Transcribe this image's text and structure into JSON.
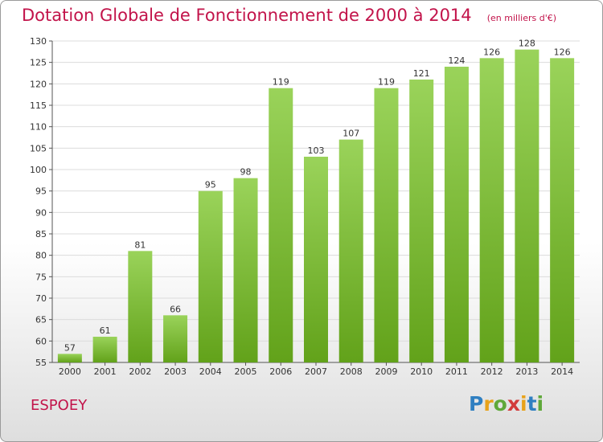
{
  "header": {
    "title": "Dotation Globale de Fonctionnement de 2000 à 2014",
    "subtitle": "(en milliers d'€)"
  },
  "footer": {
    "commune": "ESPOEY",
    "logo_text": "Proxiti"
  },
  "colors": {
    "title": "#c2134a",
    "bar_top": "#9ad35a",
    "bar_bottom": "#62a21a",
    "grid": "#dcdcdc"
  },
  "chart_data": {
    "type": "bar",
    "title": "Dotation Globale de Fonctionnement de 2000 à 2014",
    "subtitle": "(en milliers d'€)",
    "categories": [
      "2000",
      "2001",
      "2002",
      "2003",
      "2004",
      "2005",
      "2006",
      "2007",
      "2008",
      "2009",
      "2010",
      "2011",
      "2012",
      "2013",
      "2014"
    ],
    "values": [
      57,
      61,
      81,
      66,
      95,
      98,
      119,
      103,
      107,
      119,
      121,
      124,
      126,
      128,
      126
    ],
    "ylim": [
      55,
      130
    ],
    "yticks": [
      55,
      60,
      65,
      70,
      75,
      80,
      85,
      90,
      95,
      100,
      105,
      110,
      115,
      120,
      125,
      130
    ],
    "xlabel": "",
    "ylabel": "",
    "grid": true,
    "data_labels": true
  }
}
